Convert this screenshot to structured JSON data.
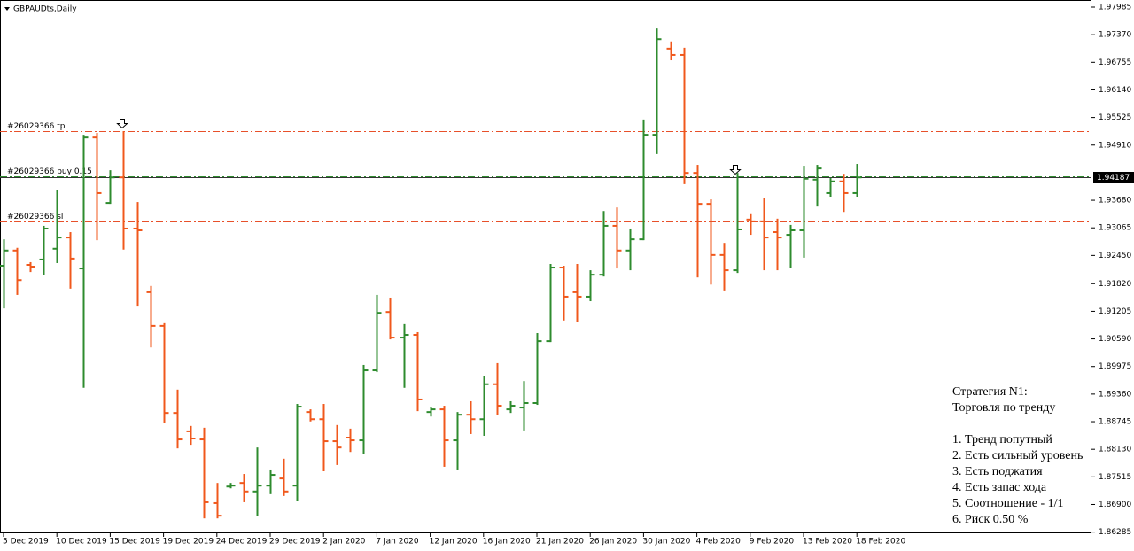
{
  "chart_data": {
    "type": "ohlc",
    "title": "GBPAUDts,Daily",
    "up_color": "#2e8b2e",
    "down_color": "#f0581c",
    "categories": [
      "5 Dec 2019",
      null,
      null,
      null,
      "10 Dec 2019",
      null,
      null,
      null,
      "15 Dec 2019",
      null,
      null,
      null,
      "19 Dec 2019",
      null,
      null,
      null,
      "24 Dec 2019",
      null,
      null,
      null,
      "29 Dec 2019",
      null,
      null,
      null,
      "2 Jan 2020",
      null,
      null,
      null,
      "7 Jan 2020",
      null,
      null,
      null,
      "12 Jan 2020",
      null,
      null,
      null,
      "16 Jan 2020",
      null,
      null,
      null,
      "21 Jan 2020",
      null,
      null,
      null,
      "26 Jan 2020",
      null,
      null,
      null,
      "30 Jan 2020",
      null,
      null,
      null,
      "4 Feb 2020",
      null,
      null,
      null,
      "9 Feb 2020",
      null,
      null,
      null,
      "13 Feb 2020",
      null,
      null,
      null,
      "18 Feb 2020"
    ],
    "open": [
      1.9222,
      1.9256,
      1.9224,
      1.9236,
      1.926,
      1.9285,
      1.9216,
      1.9508,
      1.9362,
      1.9419,
      1.9305,
      1.9163,
      1.9088,
      1.8894,
      1.8853,
      1.8835,
      1.8693,
      1.873,
      1.8738,
      1.8719,
      1.8732,
      1.8748,
      1.8732,
      1.8896,
      1.888,
      1.8831,
      1.8839,
      1.8833,
      1.8989,
      1.9119,
      1.9062,
      1.9068,
      1.8896,
      1.8902,
      1.8833,
      1.889,
      1.888,
      1.8958,
      1.8902,
      1.8906,
      1.8916,
      1.9054,
      1.9218,
      1.9163,
      1.9153,
      1.9202,
      1.9311,
      1.9256,
      1.9281,
      1.9514,
      1.9706,
      1.9692,
      1.9429,
      1.936,
      1.9246,
      1.9212,
      1.9325,
      1.9321,
      1.9297,
      1.9291,
      1.9301,
      1.9414,
      1.9384,
      1.941,
      1.9384
    ],
    "high": [
      1.9281,
      1.9262,
      1.923,
      1.9311,
      1.939,
      1.9297,
      1.9514,
      1.9518,
      1.9435,
      1.9522,
      1.9364,
      1.9177,
      1.9094,
      1.8946,
      1.8865,
      1.8861,
      1.8738,
      1.8738,
      1.8758,
      1.8817,
      1.8768,
      1.8792,
      1.8914,
      1.8902,
      1.8914,
      1.8867,
      1.8859,
      1.9001,
      1.9157,
      1.9151,
      1.9092,
      1.9074,
      1.8908,
      1.891,
      1.8896,
      1.892,
      1.8977,
      1.9005,
      1.892,
      1.8965,
      1.9072,
      1.9226,
      1.9222,
      1.9226,
      1.9212,
      1.9344,
      1.9352,
      1.9305,
      1.9548,
      1.9751,
      1.9722,
      1.9708,
      1.9447,
      1.937,
      1.9273,
      1.9429,
      1.9337,
      1.9374,
      1.9327,
      1.9313,
      1.9445,
      1.9447,
      1.9418,
      1.9427,
      1.9449
    ],
    "low": [
      1.9127,
      1.9157,
      1.9208,
      1.9202,
      1.9228,
      1.9171,
      1.895,
      1.9279,
      1.936,
      1.9258,
      1.9133,
      1.904,
      1.8871,
      1.8815,
      1.8823,
      1.8659,
      1.8659,
      1.8726,
      1.8695,
      1.8665,
      1.8713,
      1.8709,
      1.8697,
      1.8875,
      1.8764,
      1.8778,
      1.8807,
      1.8803,
      1.8985,
      1.9058,
      1.895,
      1.8898,
      1.8886,
      1.8774,
      1.8768,
      1.8847,
      1.8843,
      1.889,
      1.8894,
      1.8855,
      1.8912,
      1.9052,
      1.91,
      1.9096,
      1.9143,
      1.9198,
      1.9216,
      1.9212,
      1.9279,
      1.9471,
      1.968,
      1.9404,
      1.9196,
      1.918,
      1.9167,
      1.9206,
      1.9291,
      1.9212,
      1.9212,
      1.9218,
      1.924,
      1.9354,
      1.9376,
      1.9342,
      1.9376
    ],
    "close": [
      1.9256,
      1.919,
      1.922,
      1.9305,
      1.9285,
      1.9238,
      1.9508,
      1.9384,
      1.9419,
      1.9305,
      1.9301,
      1.9088,
      1.8894,
      1.8835,
      1.8837,
      1.8695,
      1.8665,
      1.8732,
      1.8719,
      1.8732,
      1.8756,
      1.8719,
      1.8908,
      1.888,
      1.8831,
      1.8817,
      1.8833,
      1.8989,
      1.9117,
      1.9062,
      1.9068,
      1.8924,
      1.8902,
      1.8833,
      1.889,
      1.888,
      1.8958,
      1.891,
      1.891,
      1.8916,
      1.9054,
      1.9218,
      1.9153,
      1.9153,
      1.9202,
      1.9311,
      1.9256,
      1.9281,
      1.9514,
      1.9727,
      1.9692,
      1.9429,
      1.936,
      1.9246,
      1.9212,
      1.9303,
      1.9321,
      1.9285,
      1.9285,
      1.9301,
      1.9416,
      1.9439,
      1.941,
      1.9384,
      1.9419
    ],
    "ylim": [
      1.86258,
      1.98143
    ],
    "yticks": [
      1.97985,
      {
        "value": 1.9737,
        "label": "1.97370"
      },
      1.96755,
      {
        "value": 1.9614,
        "label": "1.96140"
      },
      1.95525,
      {
        "value": 1.9491,
        "label": "1.94910"
      },
      {
        "value": 1.9368,
        "label": "1.93680"
      },
      1.93065,
      {
        "value": 1.9245,
        "label": "1.92450"
      },
      {
        "value": 1.9182,
        "label": "1.91820"
      },
      1.91205,
      {
        "value": 1.9059,
        "label": "1.90590"
      },
      1.89975,
      {
        "value": 1.8936,
        "label": "1.89360"
      },
      1.88745,
      {
        "value": 1.8813,
        "label": "1.88130"
      },
      1.87515,
      {
        "value": 1.869,
        "label": "1.86900"
      },
      1.86285
    ],
    "current_price": 1.94187,
    "levels": [
      {
        "label": "#26029366 tp",
        "value": 1.9522,
        "color": "#e8502a"
      },
      {
        "label": "#26029366 buy 0.15",
        "value": 1.9422,
        "color": "#2e8b2e"
      },
      {
        "label": "#26029366 sl",
        "value": 1.9321,
        "color": "#e8502a"
      }
    ],
    "annotation": [
      "Стратегия N1:",
      "Торговля по тренду",
      "1. Тренд попутный",
      "2. Есть сильный уровень",
      "3. Есть поджатия",
      "4. Есть запас хода",
      "5. Соотношение - 1/1",
      "6. Риск 0.50 %"
    ]
  }
}
